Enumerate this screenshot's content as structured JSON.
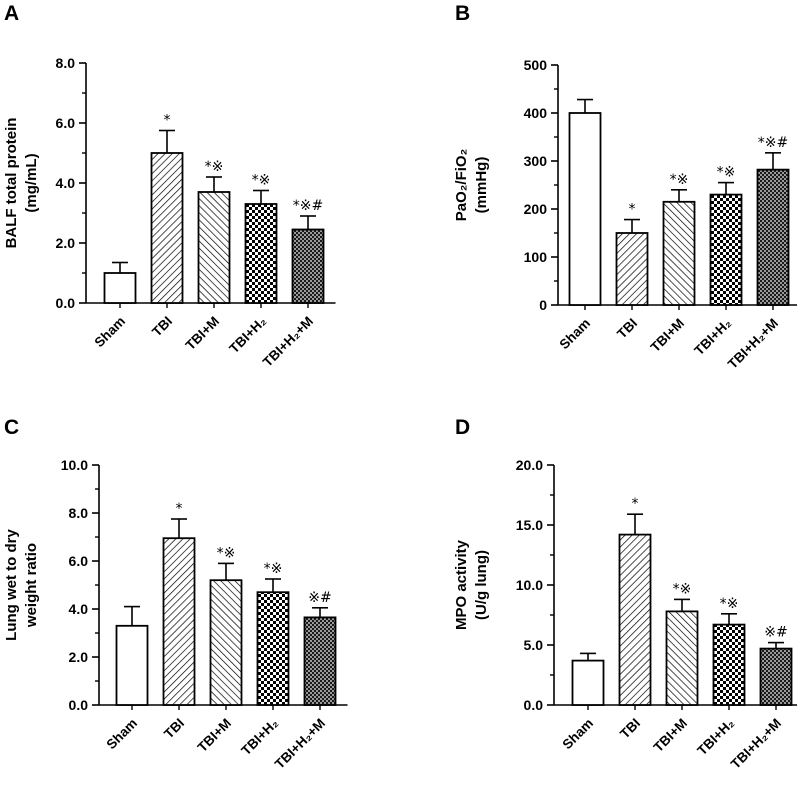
{
  "chart_data": [
    {
      "panel": "A",
      "type": "bar",
      "categories": [
        "Sham",
        "TBI",
        "TBI+M",
        "TBI+H₂",
        "TBI+H₂+M"
      ],
      "values": [
        1.0,
        5.0,
        3.7,
        3.3,
        2.45
      ],
      "errors": [
        0.35,
        0.75,
        0.5,
        0.45,
        0.45
      ],
      "annotations": [
        "",
        "*",
        "*※",
        "*※",
        "*※#"
      ],
      "ylabel_lines": [
        "BALF total protein",
        "(mg/mL)"
      ],
      "ylim": [
        0,
        8
      ],
      "yticks": [
        0,
        2,
        4,
        6,
        8
      ],
      "ytick_labels": [
        "0.0",
        "2.0",
        "4.0",
        "6.0",
        "8.0"
      ]
    },
    {
      "panel": "B",
      "type": "bar",
      "categories": [
        "Sham",
        "TBI",
        "TBI+M",
        "TBI+H₂",
        "TBI+H₂+M"
      ],
      "values": [
        400,
        150,
        215,
        230,
        282
      ],
      "errors": [
        28,
        28,
        25,
        25,
        35
      ],
      "annotations": [
        "",
        "*",
        "*※",
        "*※",
        "*※#"
      ],
      "ylabel_lines": [
        "PaO₂/FiO₂",
        "(mmHg)"
      ],
      "ylim": [
        0,
        500
      ],
      "yticks": [
        0,
        100,
        200,
        300,
        400,
        500
      ],
      "ytick_labels": [
        "0",
        "100",
        "200",
        "300",
        "400",
        "500"
      ]
    },
    {
      "panel": "C",
      "type": "bar",
      "categories": [
        "Sham",
        "TBI",
        "TBI+M",
        "TBI+H₂",
        "TBI+H₂+M"
      ],
      "values": [
        3.3,
        6.95,
        5.2,
        4.7,
        3.65
      ],
      "errors": [
        0.8,
        0.8,
        0.7,
        0.55,
        0.4
      ],
      "annotations": [
        "",
        "*",
        "*※",
        "*※",
        "※#"
      ],
      "ylabel_lines": [
        "Lung wet to dry",
        "weight ratio"
      ],
      "ylim": [
        0,
        10
      ],
      "yticks": [
        0,
        2,
        4,
        6,
        8,
        10
      ],
      "ytick_labels": [
        "0.0",
        "2.0",
        "4.0",
        "6.0",
        "8.0",
        "10.0"
      ]
    },
    {
      "panel": "D",
      "type": "bar",
      "categories": [
        "Sham",
        "TBI",
        "TBI+M",
        "TBI+H₂",
        "TBI+H₂+M"
      ],
      "values": [
        3.7,
        14.2,
        7.8,
        6.7,
        4.7
      ],
      "errors": [
        0.6,
        1.7,
        1.0,
        0.9,
        0.5
      ],
      "annotations": [
        "",
        "*",
        "*※",
        "*※",
        "※#"
      ],
      "ylabel_lines": [
        "MPO activity",
        "(U/g lung)"
      ],
      "ylim": [
        0,
        20
      ],
      "yticks": [
        0,
        5,
        10,
        15,
        20
      ],
      "ytick_labels": [
        "0.0",
        "5.0",
        "10.0",
        "15.0",
        "20.0"
      ]
    }
  ],
  "colors": {
    "ink": "#000000",
    "fill": "#ffffff",
    "dark_fill": "#555555"
  },
  "bar_patterns": [
    "none",
    "diagonal-forward",
    "diagonal-back",
    "checker",
    "dark-checker"
  ]
}
